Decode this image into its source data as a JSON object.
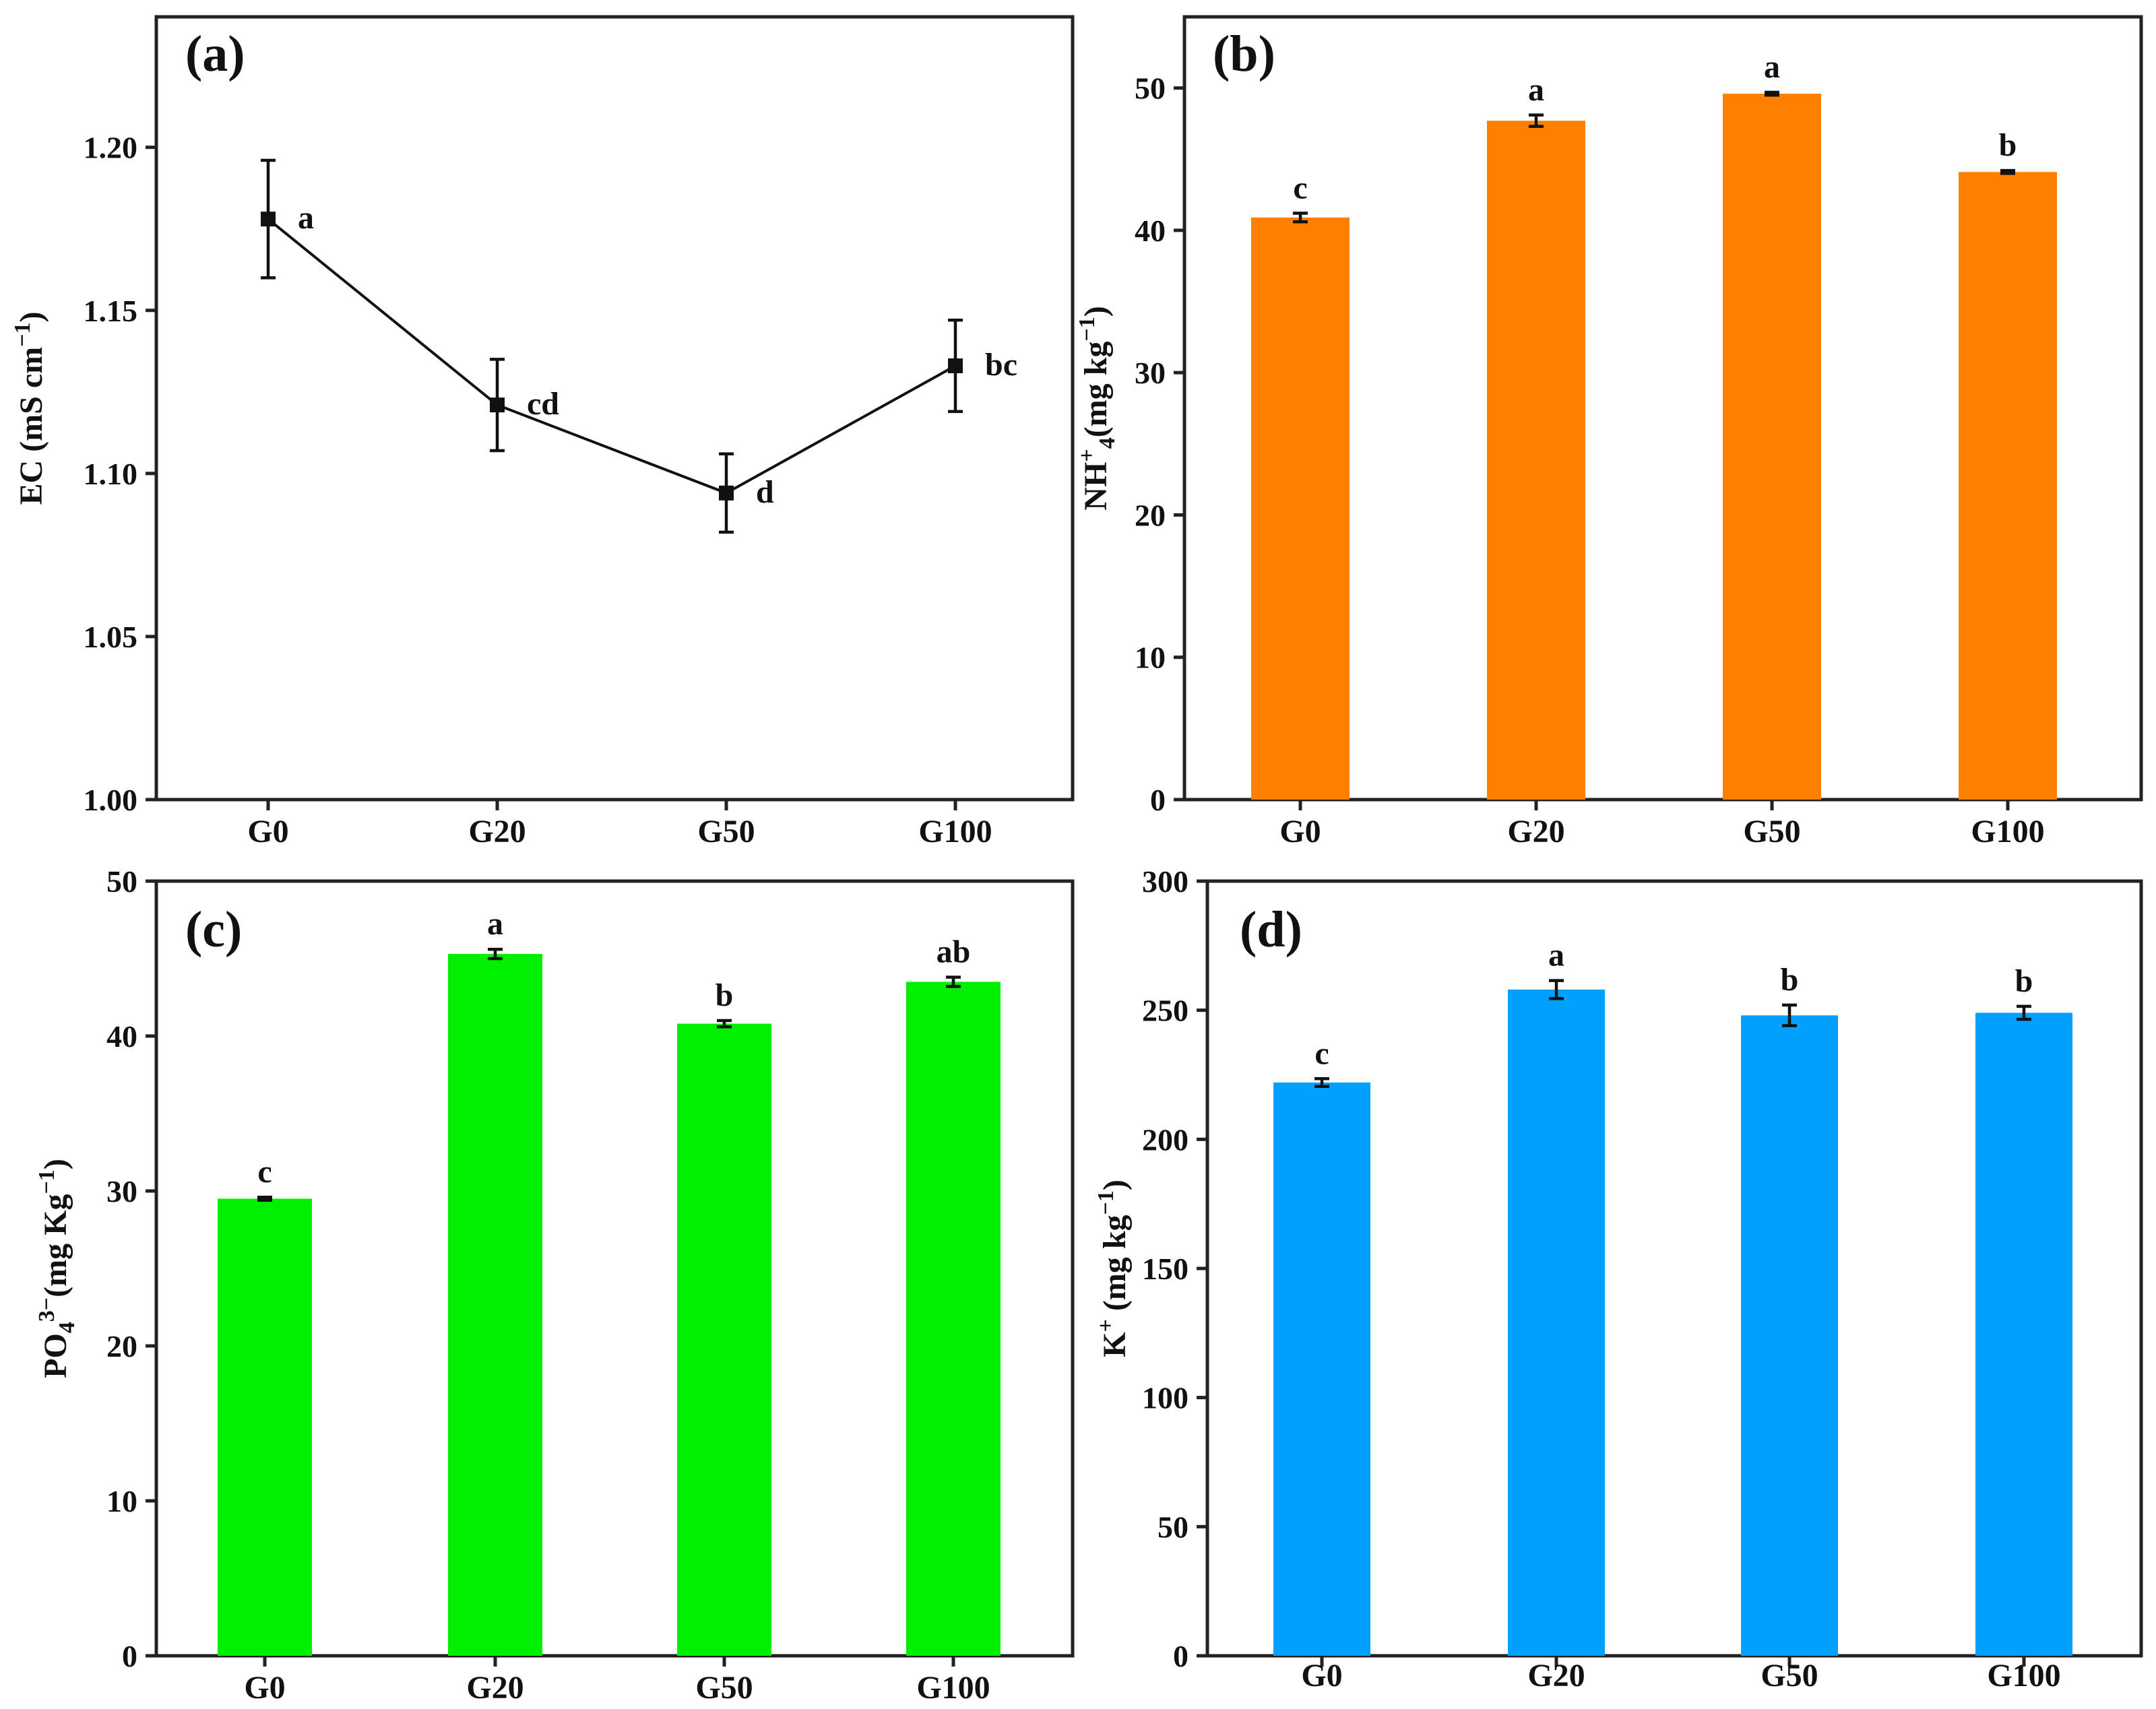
{
  "chart_data": [
    {
      "id": "a",
      "panel_label": "(a)",
      "type": "line",
      "ylabel": "EC (mS cm⁻¹)",
      "ylabel_parts": {
        "base": "EC (mS cm",
        "sup": "−1",
        "tail": ")"
      },
      "categories": [
        "G0",
        "G20",
        "G50",
        "G100"
      ],
      "values": [
        1.178,
        1.121,
        1.094,
        1.133
      ],
      "errors": [
        0.018,
        0.014,
        0.012,
        0.014
      ],
      "significance": [
        "a",
        "cd",
        "d",
        "bc"
      ],
      "ylim": [
        1.0,
        1.24
      ],
      "yticks": [
        1.0,
        1.05,
        1.1,
        1.15,
        1.2
      ],
      "ytick_labels": [
        "1.00",
        "1.05",
        "1.10",
        "1.15",
        "1.20"
      ],
      "color": "#111111"
    },
    {
      "id": "b",
      "panel_label": "(b)",
      "type": "bar",
      "ylabel": "NH⁺₄(mg kg⁻¹)",
      "ylabel_parts": {
        "base": "NH",
        "sup": "+",
        "sub": "4",
        "tail": "(mg kg",
        "sup2": "−1",
        "end": ")"
      },
      "categories": [
        "G0",
        "G20",
        "G50",
        "G100"
      ],
      "values": [
        40.9,
        47.7,
        49.6,
        44.1
      ],
      "errors": [
        0.3,
        0.4,
        0.1,
        0.1
      ],
      "significance": [
        "c",
        "a",
        "a",
        "b"
      ],
      "ylim": [
        0,
        55
      ],
      "yticks": [
        0,
        10,
        20,
        30,
        40,
        50
      ],
      "ytick_labels": [
        "0",
        "10",
        "20",
        "30",
        "40",
        "50"
      ],
      "color": "#ff8000"
    },
    {
      "id": "c",
      "panel_label": "(c)",
      "type": "bar",
      "ylabel": "PO₄³⁻(mg Kg⁻¹)",
      "ylabel_parts": {
        "base": "PO",
        "sub": "4",
        "sup": "3−",
        "tail": "(mg Kg",
        "sup2": "−1",
        "end": ")"
      },
      "categories": [
        "G0",
        "G20",
        "G50",
        "G100"
      ],
      "values": [
        29.5,
        45.3,
        40.8,
        43.5
      ],
      "errors": [
        0.1,
        0.3,
        0.2,
        0.3
      ],
      "significance": [
        "c",
        "a",
        "b",
        "ab"
      ],
      "ylim": [
        0,
        50
      ],
      "yticks": [
        0,
        10,
        20,
        30,
        40,
        50
      ],
      "ytick_labels": [
        "0",
        "10",
        "20",
        "30",
        "40",
        "50"
      ],
      "color": "#00ee00"
    },
    {
      "id": "d",
      "panel_label": "(d)",
      "type": "bar",
      "ylabel": "K⁺ (mg kg⁻¹)",
      "ylabel_parts": {
        "base": "K",
        "sup": "+",
        "tail": " (mg kg",
        "sup2": "−1",
        "end": ")"
      },
      "categories": [
        "G0",
        "G20",
        "G50",
        "G100"
      ],
      "values": [
        222,
        258,
        248,
        249
      ],
      "errors": [
        1.5,
        3.5,
        4.0,
        2.5
      ],
      "significance": [
        "c",
        "a",
        "b",
        "b"
      ],
      "ylim": [
        0,
        300
      ],
      "yticks": [
        0,
        50,
        100,
        150,
        200,
        250,
        300
      ],
      "ytick_labels": [
        "0",
        "50",
        "100",
        "150",
        "200",
        "250",
        "300"
      ],
      "color": "#00a0ff"
    }
  ]
}
